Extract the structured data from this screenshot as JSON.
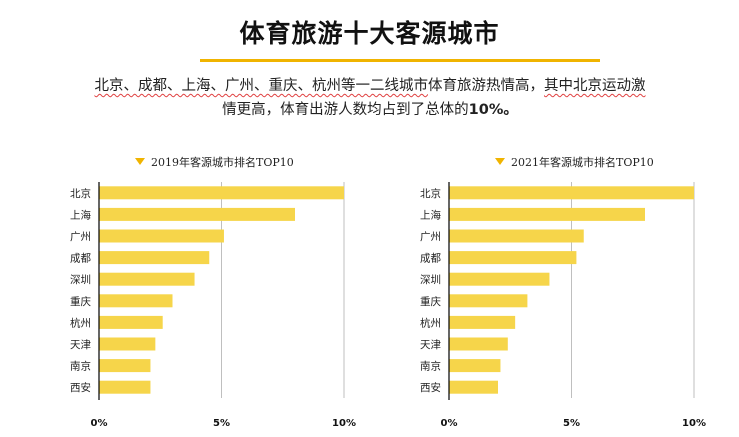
{
  "header": {
    "title": "体育旅游十大客源城市",
    "description_parts": [
      {
        "text": "北京、成都、上海、广州、重庆、杭州等一二线城市",
        "squiggle": true
      },
      {
        "text": "体育旅游热情高，",
        "squiggle": false
      },
      {
        "text": "其中北京运动激",
        "squiggle": true
      },
      {
        "text": "情更高，体育出游人数均占到了总体的",
        "squiggle": false
      },
      {
        "text": "10%。",
        "bold": true
      }
    ]
  },
  "colors": {
    "accent": "#f0b400",
    "bar": "#f6d54a",
    "gridline": "#bfbfbf",
    "axis": "#000000"
  },
  "chart_data": [
    {
      "type": "bar",
      "orientation": "horizontal",
      "title": "2019年客源城市排名TOP10",
      "legend_marker": "triangle-down",
      "categories": [
        "北京",
        "上海",
        "广州",
        "成都",
        "深圳",
        "重庆",
        "杭州",
        "天津",
        "南京",
        "西安"
      ],
      "values": [
        10.0,
        8.0,
        5.1,
        4.5,
        3.9,
        3.0,
        2.6,
        2.3,
        2.1,
        2.1
      ],
      "unit": "%",
      "xlim": [
        0,
        10
      ],
      "xticks": [
        "0%",
        "5%",
        "10%"
      ],
      "xtick_values": [
        0,
        5,
        10
      ],
      "grid": true,
      "xlabel": "",
      "ylabel": ""
    },
    {
      "type": "bar",
      "orientation": "horizontal",
      "title": "2021年客源城市排名TOP10",
      "legend_marker": "triangle-down",
      "categories": [
        "北京",
        "上海",
        "广州",
        "成都",
        "深圳",
        "重庆",
        "杭州",
        "天津",
        "南京",
        "西安"
      ],
      "values": [
        10.0,
        8.0,
        5.5,
        5.2,
        4.1,
        3.2,
        2.7,
        2.4,
        2.1,
        2.0
      ],
      "unit": "%",
      "xlim": [
        0,
        10
      ],
      "xticks": [
        "0%",
        "5%",
        "10%"
      ],
      "xtick_values": [
        0,
        5,
        10
      ],
      "grid": true,
      "xlabel": "",
      "ylabel": ""
    }
  ]
}
